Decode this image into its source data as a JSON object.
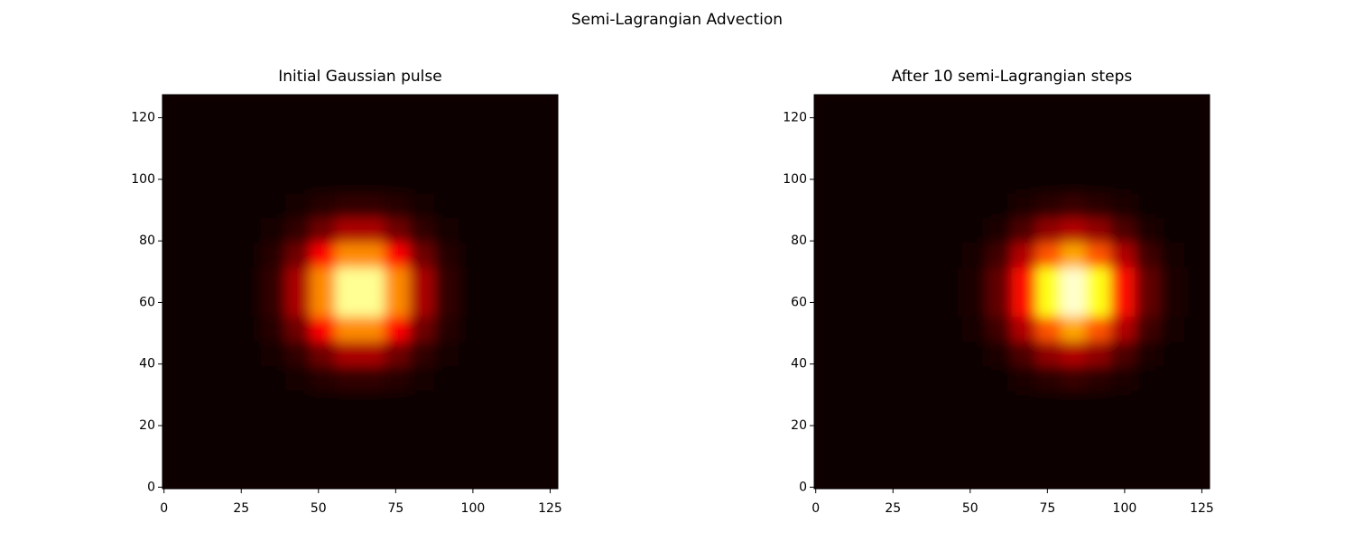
{
  "title": "Semi-Lagrangian Advection",
  "chart_data": [
    {
      "type": "heatmap",
      "title": "Initial Gaussian pulse",
      "colormap": "hot",
      "xlim": [
        -0.5,
        127.5
      ],
      "ylim": [
        -0.5,
        127.5
      ],
      "xticks": [
        0,
        25,
        50,
        75,
        100,
        125
      ],
      "yticks": [
        0,
        20,
        40,
        60,
        80,
        100,
        120
      ],
      "values": [
        [
          0,
          0,
          0,
          0,
          0,
          0,
          0,
          0,
          0,
          0,
          0,
          0,
          0,
          0,
          0,
          0
        ],
        [
          0,
          0,
          0,
          0,
          0,
          0,
          0,
          0,
          0,
          0,
          0,
          0,
          0,
          0,
          0,
          0
        ],
        [
          0,
          0,
          0,
          0,
          0,
          0,
          0,
          0,
          0,
          0,
          0,
          0,
          0,
          0,
          0,
          0
        ],
        [
          0,
          0,
          0,
          0,
          0,
          0,
          0.01,
          0.01,
          0.01,
          0.01,
          0,
          0,
          0,
          0,
          0,
          0
        ],
        [
          0,
          0,
          0,
          0,
          0,
          0.02,
          0.04,
          0.06,
          0.06,
          0.04,
          0.02,
          0,
          0,
          0,
          0,
          0
        ],
        [
          0,
          0,
          0,
          0,
          0.02,
          0.06,
          0.15,
          0.24,
          0.24,
          0.15,
          0.06,
          0.02,
          0,
          0,
          0,
          0
        ],
        [
          0,
          0,
          0,
          0.01,
          0.04,
          0.15,
          0.37,
          0.57,
          0.57,
          0.37,
          0.15,
          0.04,
          0.01,
          0,
          0,
          0
        ],
        [
          0,
          0,
          0,
          0.01,
          0.06,
          0.24,
          0.57,
          0.89,
          0.89,
          0.57,
          0.24,
          0.06,
          0.01,
          0,
          0,
          0
        ],
        [
          0,
          0,
          0,
          0.01,
          0.06,
          0.24,
          0.57,
          0.89,
          0.89,
          0.57,
          0.24,
          0.06,
          0.01,
          0,
          0,
          0
        ],
        [
          0,
          0,
          0,
          0.01,
          0.04,
          0.15,
          0.37,
          0.57,
          0.57,
          0.37,
          0.15,
          0.04,
          0.01,
          0,
          0,
          0
        ],
        [
          0,
          0,
          0,
          0,
          0.02,
          0.06,
          0.15,
          0.24,
          0.24,
          0.15,
          0.06,
          0.02,
          0,
          0,
          0,
          0
        ],
        [
          0,
          0,
          0,
          0,
          0,
          0.02,
          0.04,
          0.06,
          0.06,
          0.04,
          0.02,
          0,
          0,
          0,
          0,
          0
        ],
        [
          0,
          0,
          0,
          0,
          0,
          0,
          0.01,
          0.01,
          0.01,
          0.01,
          0,
          0,
          0,
          0,
          0,
          0
        ],
        [
          0,
          0,
          0,
          0,
          0,
          0,
          0,
          0,
          0,
          0,
          0,
          0,
          0,
          0,
          0,
          0
        ],
        [
          0,
          0,
          0,
          0,
          0,
          0,
          0,
          0,
          0,
          0,
          0,
          0,
          0,
          0,
          0,
          0
        ],
        [
          0,
          0,
          0,
          0,
          0,
          0,
          0,
          0,
          0,
          0,
          0,
          0,
          0,
          0,
          0,
          0
        ]
      ]
    },
    {
      "type": "heatmap",
      "title": "After 10 semi-Lagrangian steps",
      "colormap": "hot",
      "xlim": [
        -0.5,
        127.5
      ],
      "ylim": [
        -0.5,
        127.5
      ],
      "xticks": [
        0,
        25,
        50,
        75,
        100,
        125
      ],
      "yticks": [
        0,
        20,
        40,
        60,
        80,
        100,
        120
      ],
      "values": [
        [
          0,
          0,
          0,
          0,
          0,
          0,
          0,
          0,
          0,
          0,
          0,
          0,
          0,
          0,
          0,
          0
        ],
        [
          0,
          0,
          0,
          0,
          0,
          0,
          0,
          0,
          0,
          0,
          0,
          0,
          0,
          0,
          0,
          0
        ],
        [
          0,
          0,
          0,
          0,
          0,
          0,
          0,
          0,
          0,
          0,
          0,
          0,
          0,
          0,
          0,
          0
        ],
        [
          0,
          0,
          0,
          0,
          0,
          0,
          0,
          0,
          0,
          0.01,
          0.01,
          0.01,
          0,
          0,
          0,
          0
        ],
        [
          0,
          0,
          0,
          0,
          0,
          0,
          0,
          0.01,
          0.03,
          0.05,
          0.07,
          0.05,
          0.03,
          0.01,
          0,
          0
        ],
        [
          0,
          0,
          0,
          0,
          0,
          0,
          0.01,
          0.03,
          0.1,
          0.2,
          0.25,
          0.2,
          0.1,
          0.03,
          0.01,
          0
        ],
        [
          0,
          0,
          0,
          0,
          0,
          0,
          0.02,
          0.08,
          0.25,
          0.49,
          0.61,
          0.49,
          0.25,
          0.08,
          0.02,
          0
        ],
        [
          0,
          0,
          0,
          0,
          0,
          0,
          0.03,
          0.13,
          0.39,
          0.76,
          0.95,
          0.76,
          0.39,
          0.13,
          0.03,
          0
        ],
        [
          0,
          0,
          0,
          0,
          0,
          0,
          0.03,
          0.13,
          0.39,
          0.76,
          0.95,
          0.76,
          0.39,
          0.13,
          0.03,
          0
        ],
        [
          0,
          0,
          0,
          0,
          0,
          0,
          0.02,
          0.08,
          0.25,
          0.49,
          0.61,
          0.49,
          0.25,
          0.08,
          0.02,
          0
        ],
        [
          0,
          0,
          0,
          0,
          0,
          0,
          0.01,
          0.03,
          0.1,
          0.2,
          0.25,
          0.2,
          0.1,
          0.03,
          0.01,
          0
        ],
        [
          0,
          0,
          0,
          0,
          0,
          0,
          0,
          0.01,
          0.03,
          0.05,
          0.07,
          0.05,
          0.03,
          0.01,
          0,
          0
        ],
        [
          0,
          0,
          0,
          0,
          0,
          0,
          0,
          0,
          0,
          0.01,
          0.01,
          0.01,
          0,
          0,
          0,
          0
        ],
        [
          0,
          0,
          0,
          0,
          0,
          0,
          0,
          0,
          0,
          0,
          0,
          0,
          0,
          0,
          0,
          0
        ],
        [
          0,
          0,
          0,
          0,
          0,
          0,
          0,
          0,
          0,
          0,
          0,
          0,
          0,
          0,
          0,
          0
        ],
        [
          0,
          0,
          0,
          0,
          0,
          0,
          0,
          0,
          0,
          0,
          0,
          0,
          0,
          0,
          0,
          0
        ]
      ]
    }
  ]
}
